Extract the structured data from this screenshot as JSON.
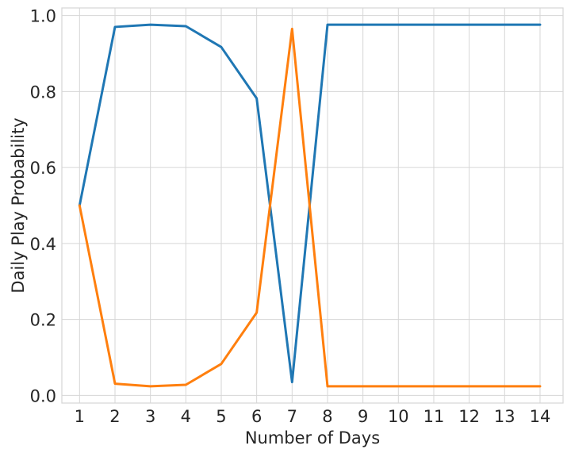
{
  "chart_data": {
    "type": "line",
    "xlabel": "Number of Days",
    "ylabel": "Daily Play Probability",
    "x": [
      1,
      2,
      3,
      4,
      5,
      6,
      7,
      8,
      9,
      10,
      11,
      12,
      13,
      14
    ],
    "xlim": [
      0.5,
      14.65
    ],
    "ylim": [
      -0.02,
      1.02
    ],
    "xticks": [
      "1",
      "2",
      "3",
      "4",
      "5",
      "6",
      "7",
      "8",
      "9",
      "10",
      "11",
      "12",
      "13",
      "14"
    ],
    "yticks": [
      "0.0",
      "0.2",
      "0.4",
      "0.6",
      "0.8",
      "1.0"
    ],
    "ytick_values": [
      0.0,
      0.2,
      0.4,
      0.6,
      0.8,
      1.0
    ],
    "grid": true,
    "series": [
      {
        "color": "#1f77b4",
        "values": [
          0.5,
          0.97,
          0.976,
          0.972,
          0.917,
          0.782,
          0.035,
          0.976,
          0.976,
          0.976,
          0.976,
          0.976,
          0.976,
          0.976
        ]
      },
      {
        "color": "#ff7f0e",
        "values": [
          0.5,
          0.031,
          0.024,
          0.028,
          0.083,
          0.218,
          0.965,
          0.024,
          0.024,
          0.024,
          0.024,
          0.024,
          0.024,
          0.024
        ]
      }
    ]
  }
}
